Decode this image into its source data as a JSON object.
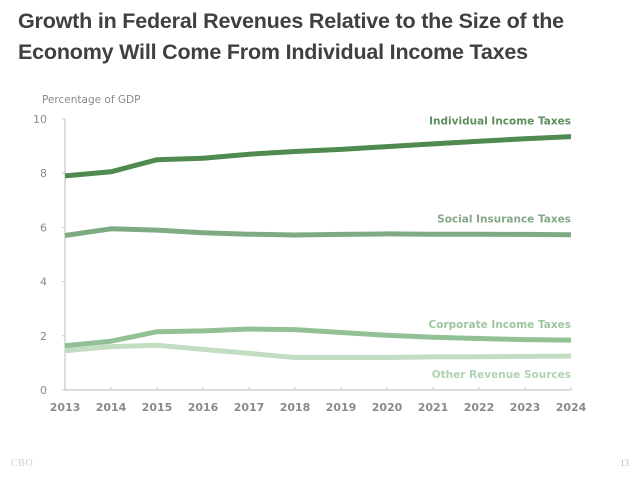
{
  "slide": {
    "title_line1": "Growth in Federal Revenues Relative to the Size of the",
    "title_line2": "Economy Will Come From Individual Income Taxes",
    "footer_source": "CBO",
    "page_number": "13"
  },
  "chart_data": {
    "type": "line",
    "title": "Growth in Federal Revenues Relative to the Size of the Economy Will Come From Individual Income Taxes",
    "xlabel": "",
    "ylabel": "Percentage of GDP",
    "x": [
      2013,
      2014,
      2015,
      2016,
      2017,
      2018,
      2019,
      2020,
      2021,
      2022,
      2023,
      2024
    ],
    "xlim": [
      2013,
      2024
    ],
    "ylim": [
      0,
      10
    ],
    "yticks": [
      0,
      2,
      4,
      6,
      8,
      10
    ],
    "xticks": [
      "2013",
      "2014",
      "2015",
      "2016",
      "2017",
      "2018",
      "2019",
      "2020",
      "2021",
      "2022",
      "2023",
      "2024"
    ],
    "grid": false,
    "legend": "inline-labels-right",
    "series": [
      {
        "name": "Individual Income Taxes",
        "color": "#4f8a4f",
        "label_color": "#5c8f5c",
        "values": [
          7.9,
          8.05,
          8.5,
          8.55,
          8.7,
          8.8,
          8.88,
          8.98,
          9.08,
          9.18,
          9.27,
          9.35
        ]
      },
      {
        "name": "Social Insurance Taxes",
        "color": "#7fab82",
        "label_color": "#86a889",
        "values": [
          5.7,
          5.95,
          5.9,
          5.8,
          5.75,
          5.72,
          5.74,
          5.76,
          5.75,
          5.75,
          5.74,
          5.73
        ]
      },
      {
        "name": "Corporate Income Taxes",
        "color": "#93c196",
        "label_color": "#9cc69f",
        "values": [
          1.63,
          1.8,
          2.15,
          2.18,
          2.25,
          2.23,
          2.12,
          2.02,
          1.95,
          1.9,
          1.86,
          1.84
        ]
      },
      {
        "name": "Other Revenue Sources",
        "color": "#c3ddc2",
        "label_color": "#b0d2b1",
        "values": [
          1.45,
          1.6,
          1.65,
          1.5,
          1.35,
          1.2,
          1.2,
          1.2,
          1.22,
          1.23,
          1.24,
          1.25
        ]
      }
    ]
  }
}
